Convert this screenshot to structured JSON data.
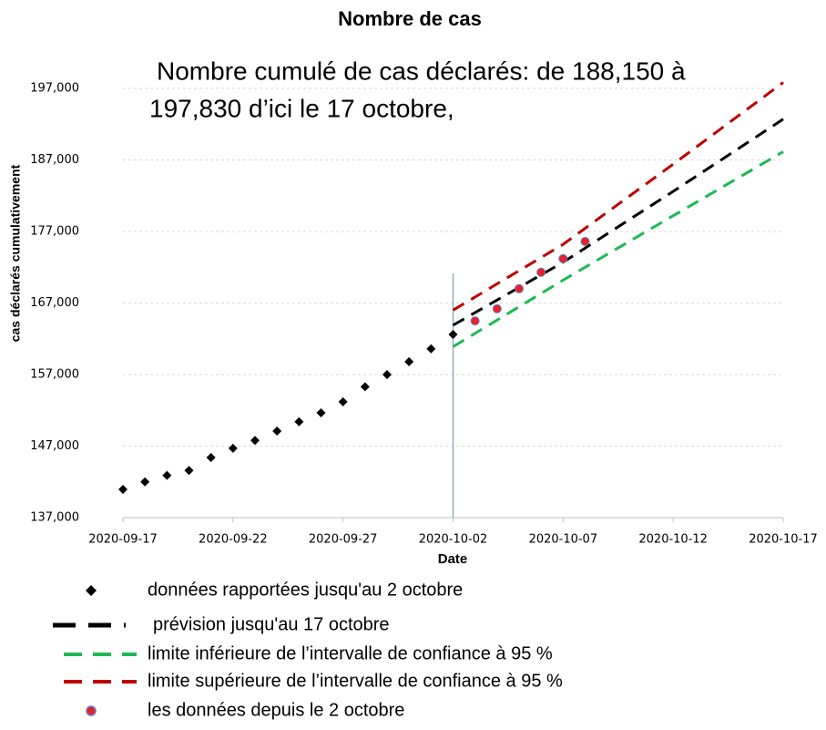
{
  "chart_data": {
    "type": "line",
    "title": "Nombre de cas",
    "annotation": [
      "Nombre cumulé de cas déclarés: de 188,150 à",
      "197,830 d’ici le 17 octobre,"
    ],
    "xlabel": "Date",
    "ylabel": "cas déclarés cumulativement",
    "xlim": [
      "2020-09-17",
      "2020-10-17"
    ],
    "xticks": [
      "2020-09-17",
      "2020-09-22",
      "2020-09-27",
      "2020-10-02",
      "2020-10-07",
      "2020-10-12",
      "2020-10-17"
    ],
    "ylim": [
      137000,
      197000
    ],
    "yticks": [
      {
        "value": 137000,
        "label": "137,000"
      },
      {
        "value": 147000,
        "label": "147,000"
      },
      {
        "value": 157000,
        "label": "157,000"
      },
      {
        "value": 167000,
        "label": "167,000"
      },
      {
        "value": 177000,
        "label": "177,000"
      },
      {
        "value": 187000,
        "label": "187,000"
      },
      {
        "value": 197000,
        "label": "197,000"
      }
    ],
    "grid": true,
    "legend": "bottom",
    "series": [
      {
        "name": "données rapportées jusqu'au 2 octobre",
        "color": "#000000",
        "style": "diamond",
        "x": [
          "2020-09-17",
          "2020-09-18",
          "2020-09-19",
          "2020-09-20",
          "2020-09-21",
          "2020-09-22",
          "2020-09-23",
          "2020-09-24",
          "2020-09-25",
          "2020-09-26",
          "2020-09-27",
          "2020-09-28",
          "2020-09-29",
          "2020-09-30",
          "2020-10-01",
          "2020-10-02"
        ],
        "values": [
          140950,
          142000,
          142900,
          143600,
          145400,
          146700,
          147800,
          149100,
          150400,
          151650,
          153200,
          155300,
          157000,
          158800,
          160600,
          162600
        ]
      },
      {
        "name": "prévision jusqu'au 17 octobre",
        "color": "#000000",
        "style": "dashed",
        "x": [
          "2020-10-02",
          "2020-10-07",
          "2020-10-12",
          "2020-10-17"
        ],
        "values": [
          163900,
          172700,
          182600,
          192700
        ]
      },
      {
        "name": "limite inférieure de l’intervalle de confiance à 95 %",
        "color": "#1db954",
        "style": "dashed",
        "x": [
          "2020-10-02",
          "2020-10-07",
          "2020-10-12",
          "2020-10-17"
        ],
        "values": [
          160900,
          170200,
          179200,
          188150
        ]
      },
      {
        "name": "limite supérieure de l’intervalle de confiance à 95 %",
        "color": "#c00000",
        "style": "dashed",
        "x": [
          "2020-10-02",
          "2020-10-07",
          "2020-10-12",
          "2020-10-17"
        ],
        "values": [
          166000,
          175200,
          186400,
          197830
        ]
      },
      {
        "name": "les données depuis le 2 octobre",
        "color": "#e8202a",
        "style": "circle",
        "x": [
          "2020-10-03",
          "2020-10-04",
          "2020-10-05",
          "2020-10-06",
          "2020-10-07",
          "2020-10-08"
        ],
        "values": [
          164500,
          166200,
          169000,
          171300,
          173200,
          175600
        ]
      }
    ]
  }
}
